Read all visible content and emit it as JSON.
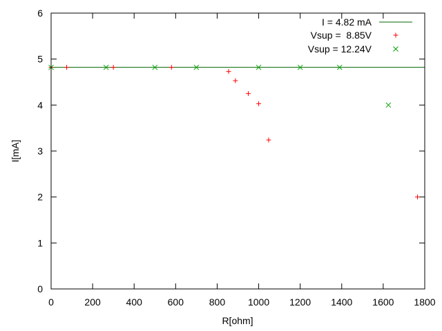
{
  "chart_data": {
    "type": "scatter",
    "xlabel": "R[ohm]",
    "ylabel": "I[mA]",
    "xlim": [
      0,
      1800
    ],
    "ylim": [
      0,
      6
    ],
    "xticks": [
      0,
      200,
      400,
      600,
      800,
      1000,
      1200,
      1400,
      1600,
      1800
    ],
    "yticks": [
      0,
      1,
      2,
      3,
      4,
      5,
      6
    ],
    "grid": false,
    "legend_position": "top-right",
    "reference_line": {
      "name": "I = 4.82 mA",
      "y": 4.82,
      "color": "#006400"
    },
    "series": [
      {
        "name": "Vsup =  8.85V",
        "marker": "plus",
        "color": "#ff0000",
        "x": [
          0,
          75,
          300,
          580,
          855,
          888,
          950,
          1000,
          1048,
          1765
        ],
        "y": [
          4.82,
          4.82,
          4.82,
          4.82,
          4.73,
          4.53,
          4.25,
          4.03,
          3.24,
          2.0
        ]
      },
      {
        "name": "Vsup = 12.24V",
        "marker": "cross",
        "color": "#00a000",
        "x": [
          0,
          265,
          500,
          700,
          1000,
          1200,
          1390,
          1625
        ],
        "y": [
          4.82,
          4.82,
          4.82,
          4.82,
          4.82,
          4.82,
          4.82,
          4.0
        ]
      }
    ]
  }
}
